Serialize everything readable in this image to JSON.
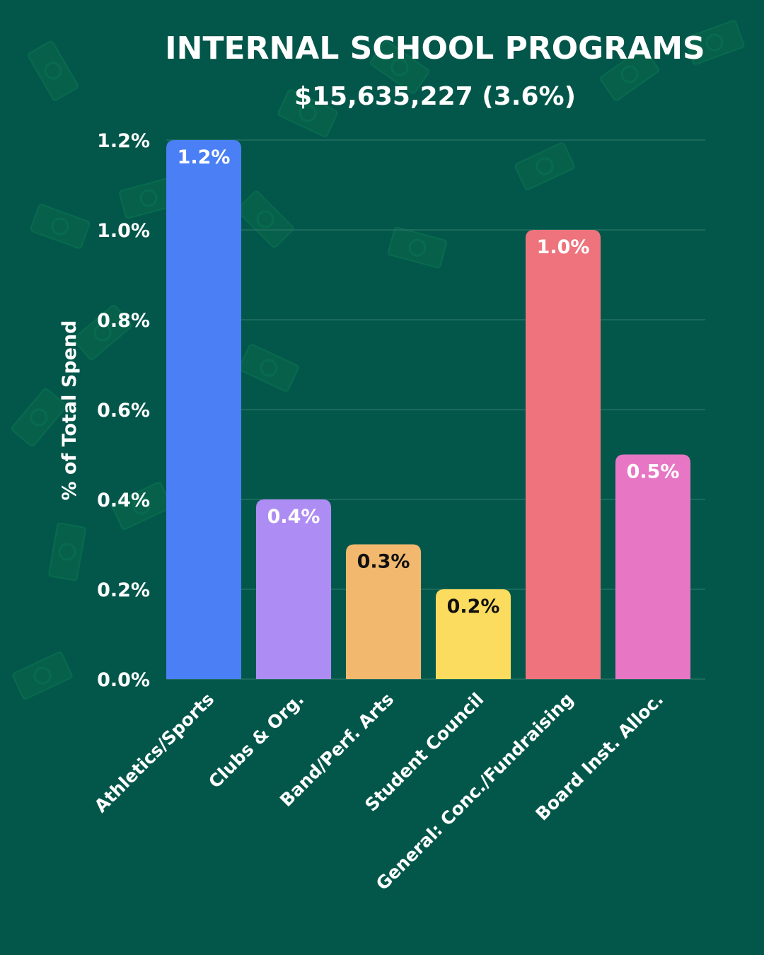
{
  "colors": {
    "background": "#03574a",
    "grid": "#2a7566",
    "text": "#ffffff"
  },
  "chart_data": {
    "type": "bar",
    "title": "INTERNAL SCHOOL PROGRAMS",
    "subtitle": "$15,635,227 (3.6%)",
    "xlabel": "",
    "ylabel": "% of Total Spend",
    "ylim": [
      0,
      1.2
    ],
    "yticks": [
      "0.0%",
      "0.2%",
      "0.4%",
      "0.6%",
      "0.8%",
      "1.0%",
      "1.2%"
    ],
    "grid": true,
    "categories": [
      "Athletics/Sports",
      "Clubs & Org.",
      "Band/Perf. Arts",
      "Student Council",
      "General: Conc./Fundraising",
      "Board Inst. Alloc."
    ],
    "values": [
      1.2,
      0.4,
      0.3,
      0.2,
      1.0,
      0.5
    ],
    "data_labels": [
      "1.2%",
      "0.4%",
      "0.3%",
      "0.2%",
      "1.0%",
      "0.5%"
    ],
    "bar_colors": [
      "#4a7ff5",
      "#ad8cf3",
      "#f1b86e",
      "#fcdc5e",
      "#ee737c",
      "#e776c4"
    ],
    "label_colors": [
      "#ffffff",
      "#ffffff",
      "#111111",
      "#111111",
      "#ffffff",
      "#ffffff"
    ]
  }
}
